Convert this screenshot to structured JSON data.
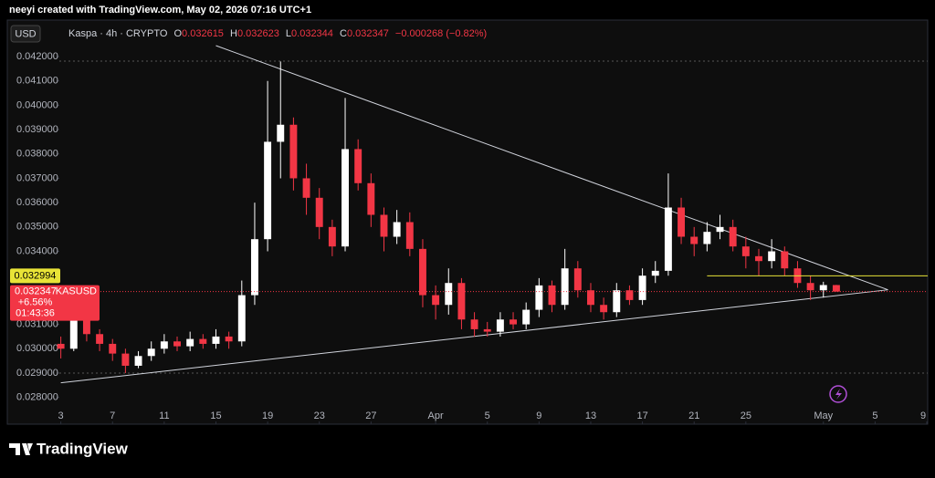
{
  "header": {
    "credit": "neeyi created with TradingView.com, May 02, 2026 07:16 UTC+1",
    "brand": "TradingView"
  },
  "chart_data": {
    "type": "candlestick",
    "currency": "USD",
    "legend": {
      "symbol": "Kaspa · 4h · CRYPTO",
      "open_label": "O",
      "open": "0.032615",
      "high_label": "H",
      "high": "0.032623",
      "low_label": "L",
      "low": "0.032344",
      "close_label": "C",
      "close": "0.032347",
      "change": "−0.000268 (−0.82%)"
    },
    "x": [
      "Mar 3",
      "Mar 4",
      "Mar 5",
      "Mar 6",
      "Mar 7",
      "Mar 8",
      "Mar 9",
      "Mar 10",
      "Mar 11",
      "Mar 12",
      "Mar 13",
      "Mar 14",
      "Mar 15",
      "Mar 16",
      "Mar 17",
      "Mar 18",
      "Mar 19",
      "Mar 20",
      "Mar 21",
      "Mar 22",
      "Mar 23",
      "Mar 24",
      "Mar 25",
      "Mar 26",
      "Mar 27",
      "Mar 28",
      "Mar 29",
      "Mar 30",
      "Mar 31",
      "Apr 1",
      "Apr 2",
      "Apr 3",
      "Apr 4",
      "Apr 5",
      "Apr 6",
      "Apr 7",
      "Apr 8",
      "Apr 9",
      "Apr 10",
      "Apr 11",
      "Apr 12",
      "Apr 13",
      "Apr 14",
      "Apr 15",
      "Apr 16",
      "Apr 17",
      "Apr 18",
      "Apr 19",
      "Apr 20",
      "Apr 21",
      "Apr 22",
      "Apr 23",
      "Apr 24",
      "Apr 25",
      "Apr 26",
      "Apr 27",
      "Apr 28",
      "Apr 29",
      "Apr 30",
      "May 1",
      "May 2"
    ],
    "open": [
      0.0302,
      0.03,
      0.0312,
      0.0306,
      0.0302,
      0.0298,
      0.0293,
      0.0297,
      0.03,
      0.0303,
      0.0301,
      0.0304,
      0.0302,
      0.0305,
      0.0303,
      0.0322,
      0.0345,
      0.0385,
      0.0392,
      0.037,
      0.0362,
      0.035,
      0.0342,
      0.0382,
      0.0368,
      0.0355,
      0.0346,
      0.0352,
      0.0341,
      0.0322,
      0.0318,
      0.0327,
      0.0312,
      0.0308,
      0.0307,
      0.0312,
      0.031,
      0.0316,
      0.0326,
      0.0318,
      0.0333,
      0.0324,
      0.0318,
      0.0315,
      0.0324,
      0.032,
      0.033,
      0.0332,
      0.0358,
      0.0346,
      0.0343,
      0.0348,
      0.035,
      0.0342,
      0.0338,
      0.0336,
      0.034,
      0.0333,
      0.0327,
      0.0324,
      0.032615
    ],
    "high": [
      0.0305,
      0.0322,
      0.0314,
      0.0308,
      0.0304,
      0.03,
      0.0299,
      0.0303,
      0.0306,
      0.0305,
      0.0307,
      0.0306,
      0.0308,
      0.0307,
      0.0328,
      0.036,
      0.041,
      0.0418,
      0.0395,
      0.0376,
      0.0366,
      0.0353,
      0.0403,
      0.0386,
      0.0372,
      0.0358,
      0.0357,
      0.0356,
      0.0345,
      0.0326,
      0.0333,
      0.0329,
      0.0315,
      0.0311,
      0.0315,
      0.0315,
      0.0319,
      0.0329,
      0.0328,
      0.0341,
      0.0336,
      0.0327,
      0.0321,
      0.0327,
      0.0326,
      0.0333,
      0.0336,
      0.0372,
      0.0362,
      0.035,
      0.0352,
      0.0355,
      0.0353,
      0.0346,
      0.0341,
      0.0345,
      0.0342,
      0.0336,
      0.033,
      0.03275,
      0.032623
    ],
    "low": [
      0.0296,
      0.0299,
      0.0303,
      0.0299,
      0.0295,
      0.029,
      0.0292,
      0.0295,
      0.0298,
      0.0299,
      0.0299,
      0.03,
      0.03,
      0.03,
      0.0301,
      0.0318,
      0.034,
      0.037,
      0.0365,
      0.0355,
      0.0345,
      0.0338,
      0.034,
      0.0365,
      0.035,
      0.034,
      0.0343,
      0.0338,
      0.0317,
      0.0312,
      0.0314,
      0.0308,
      0.0305,
      0.0305,
      0.0305,
      0.0308,
      0.0308,
      0.0313,
      0.0315,
      0.0316,
      0.0321,
      0.0315,
      0.0312,
      0.0313,
      0.0318,
      0.0318,
      0.0327,
      0.033,
      0.0343,
      0.0338,
      0.034,
      0.0345,
      0.034,
      0.0333,
      0.033,
      0.0333,
      0.033,
      0.0325,
      0.032,
      0.0321,
      0.032344
    ],
    "close": [
      0.03,
      0.0312,
      0.0306,
      0.0302,
      0.0298,
      0.0293,
      0.0297,
      0.03,
      0.0303,
      0.0301,
      0.0304,
      0.0302,
      0.0305,
      0.0303,
      0.0322,
      0.0345,
      0.0385,
      0.0392,
      0.037,
      0.0362,
      0.035,
      0.0342,
      0.0382,
      0.0368,
      0.0355,
      0.0346,
      0.0352,
      0.0341,
      0.0322,
      0.0318,
      0.0327,
      0.0312,
      0.0308,
      0.0307,
      0.0312,
      0.031,
      0.0316,
      0.0326,
      0.0318,
      0.0333,
      0.0324,
      0.0318,
      0.0315,
      0.0324,
      0.032,
      0.033,
      0.0332,
      0.0358,
      0.0346,
      0.0343,
      0.0348,
      0.035,
      0.0342,
      0.0338,
      0.0336,
      0.034,
      0.0333,
      0.0327,
      0.0324,
      0.032615,
      0.032347
    ],
    "up_color": "#ffffff",
    "down_color": "#f23645",
    "xlim": [
      "Feb 27",
      "May 9"
    ],
    "xticks": [
      {
        "value": "Mar 3",
        "label": "3"
      },
      {
        "value": "Mar 7",
        "label": "7"
      },
      {
        "value": "Mar 11",
        "label": "11"
      },
      {
        "value": "Mar 15",
        "label": "15"
      },
      {
        "value": "Mar 19",
        "label": "19"
      },
      {
        "value": "Mar 23",
        "label": "23"
      },
      {
        "value": "Mar 27",
        "label": "27"
      },
      {
        "value": "Apr 1",
        "label": "Apr"
      },
      {
        "value": "Apr 5",
        "label": "5"
      },
      {
        "value": "Apr 9",
        "label": "9"
      },
      {
        "value": "Apr 13",
        "label": "13"
      },
      {
        "value": "Apr 17",
        "label": "17"
      },
      {
        "value": "Apr 21",
        "label": "21"
      },
      {
        "value": "Apr 25",
        "label": "25"
      },
      {
        "value": "May 1",
        "label": "May"
      },
      {
        "value": "May 5",
        "label": "5"
      },
      {
        "value": "May 9",
        "label": "9"
      }
    ],
    "ylim": [
      0.0269,
      0.0435
    ],
    "yticks": [
      {
        "value": 0.028,
        "label": "0.028000"
      },
      {
        "value": 0.029,
        "label": "0.029000"
      },
      {
        "value": 0.03,
        "label": "0.030000"
      },
      {
        "value": 0.031,
        "label": "0.031000"
      },
      {
        "value": 0.032,
        "label": "0.032000"
      },
      {
        "value": 0.033,
        "label": "0.033000"
      },
      {
        "value": 0.034,
        "label": "0.034000"
      },
      {
        "value": 0.035,
        "label": "0.035000"
      },
      {
        "value": 0.036,
        "label": "0.036000"
      },
      {
        "value": 0.037,
        "label": "0.037000"
      },
      {
        "value": 0.038,
        "label": "0.038000"
      },
      {
        "value": 0.039,
        "label": "0.039000"
      },
      {
        "value": 0.04,
        "label": "0.040000"
      },
      {
        "value": 0.041,
        "label": "0.041000"
      },
      {
        "value": 0.042,
        "label": "0.042000"
      }
    ],
    "trendlines": [
      {
        "x": [
          "Mar 15",
          "May 6"
        ],
        "y": [
          0.04245,
          0.03242
        ],
        "color": "#d1d4dc"
      },
      {
        "x": [
          "Mar 3",
          "May 6"
        ],
        "y": [
          0.0286,
          0.03242
        ],
        "color": "#d1d4dc"
      }
    ],
    "price_line": {
      "x": "Apr 22",
      "value": 0.032994,
      "label": "0.032994",
      "color": "#e8e337"
    },
    "last_price": {
      "label": "0.032347",
      "symbol": "KASUSD",
      "change": "+6.56%",
      "countdown": "01:43:36",
      "color": "#f23645"
    }
  }
}
